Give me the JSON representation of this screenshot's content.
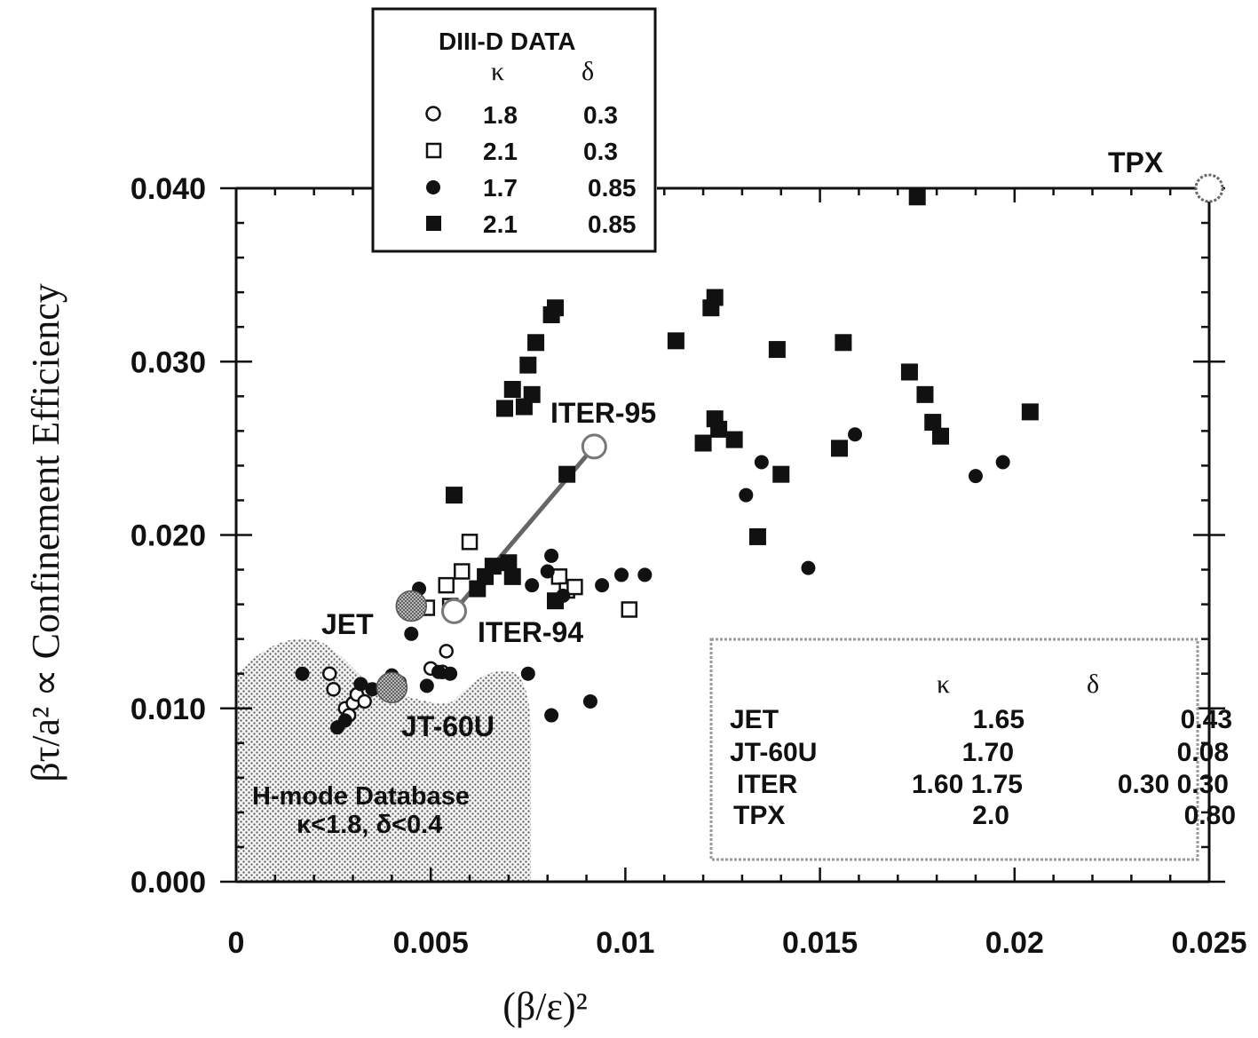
{
  "chart_data": {
    "type": "scatter",
    "xlabel": "(β/ε)²",
    "ylabel": "βτ/a²  ∝ Confinement Efficiency",
    "xlim": [
      0,
      0.025
    ],
    "ylim": [
      0,
      0.04
    ],
    "x_ticks": [
      "0",
      "0.005",
      "0.01",
      "0.015",
      "0.02",
      "0.025"
    ],
    "y_ticks": [
      "0.000",
      "0.010",
      "0.020",
      "0.030",
      "0.040"
    ],
    "legend": {
      "title": "DIII-D  DATA",
      "col_kappa": "κ",
      "col_delta": "δ",
      "placement": "top-left, above plot",
      "entries": [
        {
          "marker": "open-circle",
          "kappa": "1.8",
          "delta": "0.3"
        },
        {
          "marker": "open-square",
          "kappa": "2.1",
          "delta": "0.3"
        },
        {
          "marker": "filled-circle",
          "kappa": "1.7",
          "delta": "0.85"
        },
        {
          "marker": "filled-square",
          "kappa": "2.1",
          "delta": "0.85"
        }
      ]
    },
    "series": [
      {
        "marker": "open-circle",
        "points": [
          [
            0.0024,
            0.012
          ],
          [
            0.0025,
            0.0111
          ],
          [
            0.0028,
            0.01
          ],
          [
            0.0029,
            0.0096
          ],
          [
            0.003,
            0.0103
          ],
          [
            0.0031,
            0.0108
          ],
          [
            0.0033,
            0.0104
          ],
          [
            0.005,
            0.0123
          ],
          [
            0.0053,
            0.0121
          ],
          [
            0.0054,
            0.0133
          ]
        ]
      },
      {
        "marker": "open-square",
        "points": [
          [
            0.0049,
            0.0158
          ],
          [
            0.0054,
            0.0171
          ],
          [
            0.0055,
            0.0159
          ],
          [
            0.0058,
            0.0179
          ],
          [
            0.006,
            0.0196
          ],
          [
            0.0083,
            0.0176
          ],
          [
            0.0085,
            0.0168
          ],
          [
            0.0087,
            0.017
          ],
          [
            0.0101,
            0.0157
          ]
        ]
      },
      {
        "marker": "filled-circle",
        "points": [
          [
            0.0017,
            0.012
          ],
          [
            0.0026,
            0.0089
          ],
          [
            0.0028,
            0.0093
          ],
          [
            0.0032,
            0.0114
          ],
          [
            0.0035,
            0.0111
          ],
          [
            0.004,
            0.0119
          ],
          [
            0.0042,
            0.0115
          ],
          [
            0.0045,
            0.0143
          ],
          [
            0.0047,
            0.0169
          ],
          [
            0.0049,
            0.0113
          ],
          [
            0.0052,
            0.0121
          ],
          [
            0.0055,
            0.012
          ],
          [
            0.0075,
            0.012
          ],
          [
            0.0076,
            0.0171
          ],
          [
            0.008,
            0.0179
          ],
          [
            0.0081,
            0.0188
          ],
          [
            0.0081,
            0.0096
          ],
          [
            0.0084,
            0.0165
          ],
          [
            0.0091,
            0.0104
          ],
          [
            0.0094,
            0.0171
          ],
          [
            0.0099,
            0.0177
          ],
          [
            0.0105,
            0.0177
          ],
          [
            0.0131,
            0.0223
          ],
          [
            0.0135,
            0.0242
          ],
          [
            0.0147,
            0.0181
          ],
          [
            0.0159,
            0.0258
          ],
          [
            0.019,
            0.0234
          ],
          [
            0.0197,
            0.0242
          ]
        ]
      },
      {
        "marker": "filled-square",
        "points": [
          [
            0.0056,
            0.0223
          ],
          [
            0.0062,
            0.0169
          ],
          [
            0.0064,
            0.0176
          ],
          [
            0.0066,
            0.0182
          ],
          [
            0.0069,
            0.0273
          ],
          [
            0.007,
            0.0184
          ],
          [
            0.0071,
            0.0284
          ],
          [
            0.0071,
            0.0176
          ],
          [
            0.0074,
            0.0274
          ],
          [
            0.0075,
            0.0298
          ],
          [
            0.0076,
            0.0281
          ],
          [
            0.0077,
            0.0311
          ],
          [
            0.0081,
            0.0327
          ],
          [
            0.0082,
            0.0331
          ],
          [
            0.0082,
            0.0162
          ],
          [
            0.0085,
            0.0235
          ],
          [
            0.0113,
            0.0312
          ],
          [
            0.012,
            0.0253
          ],
          [
            0.0122,
            0.0331
          ],
          [
            0.0123,
            0.0337
          ],
          [
            0.0123,
            0.0267
          ],
          [
            0.0124,
            0.0261
          ],
          [
            0.0128,
            0.0255
          ],
          [
            0.0134,
            0.0199
          ],
          [
            0.0139,
            0.0307
          ],
          [
            0.014,
            0.0235
          ],
          [
            0.0155,
            0.025
          ],
          [
            0.0156,
            0.0311
          ],
          [
            0.0173,
            0.0294
          ],
          [
            0.0175,
            0.0395
          ],
          [
            0.0177,
            0.0281
          ],
          [
            0.0179,
            0.0265
          ],
          [
            0.0181,
            0.0257
          ],
          [
            0.0204,
            0.0271
          ]
        ]
      }
    ],
    "machines": [
      {
        "label": "JET",
        "x": 0.0045,
        "y": 0.0159
      },
      {
        "label": "JT-60U",
        "x": 0.004,
        "y": 0.0112
      },
      {
        "label": "ITER-94",
        "x": 0.0056,
        "y": 0.0156
      },
      {
        "label": "ITER-95",
        "x": 0.0092,
        "y": 0.0251
      },
      {
        "label": "TPX",
        "x": 0.025,
        "y": 0.04
      }
    ],
    "iter_arrow": {
      "from": [
        0.0056,
        0.0156
      ],
      "to": [
        0.0092,
        0.0251
      ]
    },
    "region": {
      "label_line1": "H-mode  Database",
      "label_line2": "κ<1.8,  δ<0.4"
    },
    "machine_table": {
      "head_kappa": "κ",
      "head_delta": "δ",
      "rows": [
        {
          "name": "JET",
          "kappa": "1.65",
          "delta": "0.43"
        },
        {
          "name": "JT-60U",
          "kappa": "1.70",
          "delta": "0.08"
        },
        {
          "name": "ITER",
          "kappa": "1.60 1.75",
          "delta": "0.30 0.30"
        },
        {
          "name": "TPX",
          "kappa": "2.0",
          "delta": "0.80"
        }
      ]
    }
  }
}
